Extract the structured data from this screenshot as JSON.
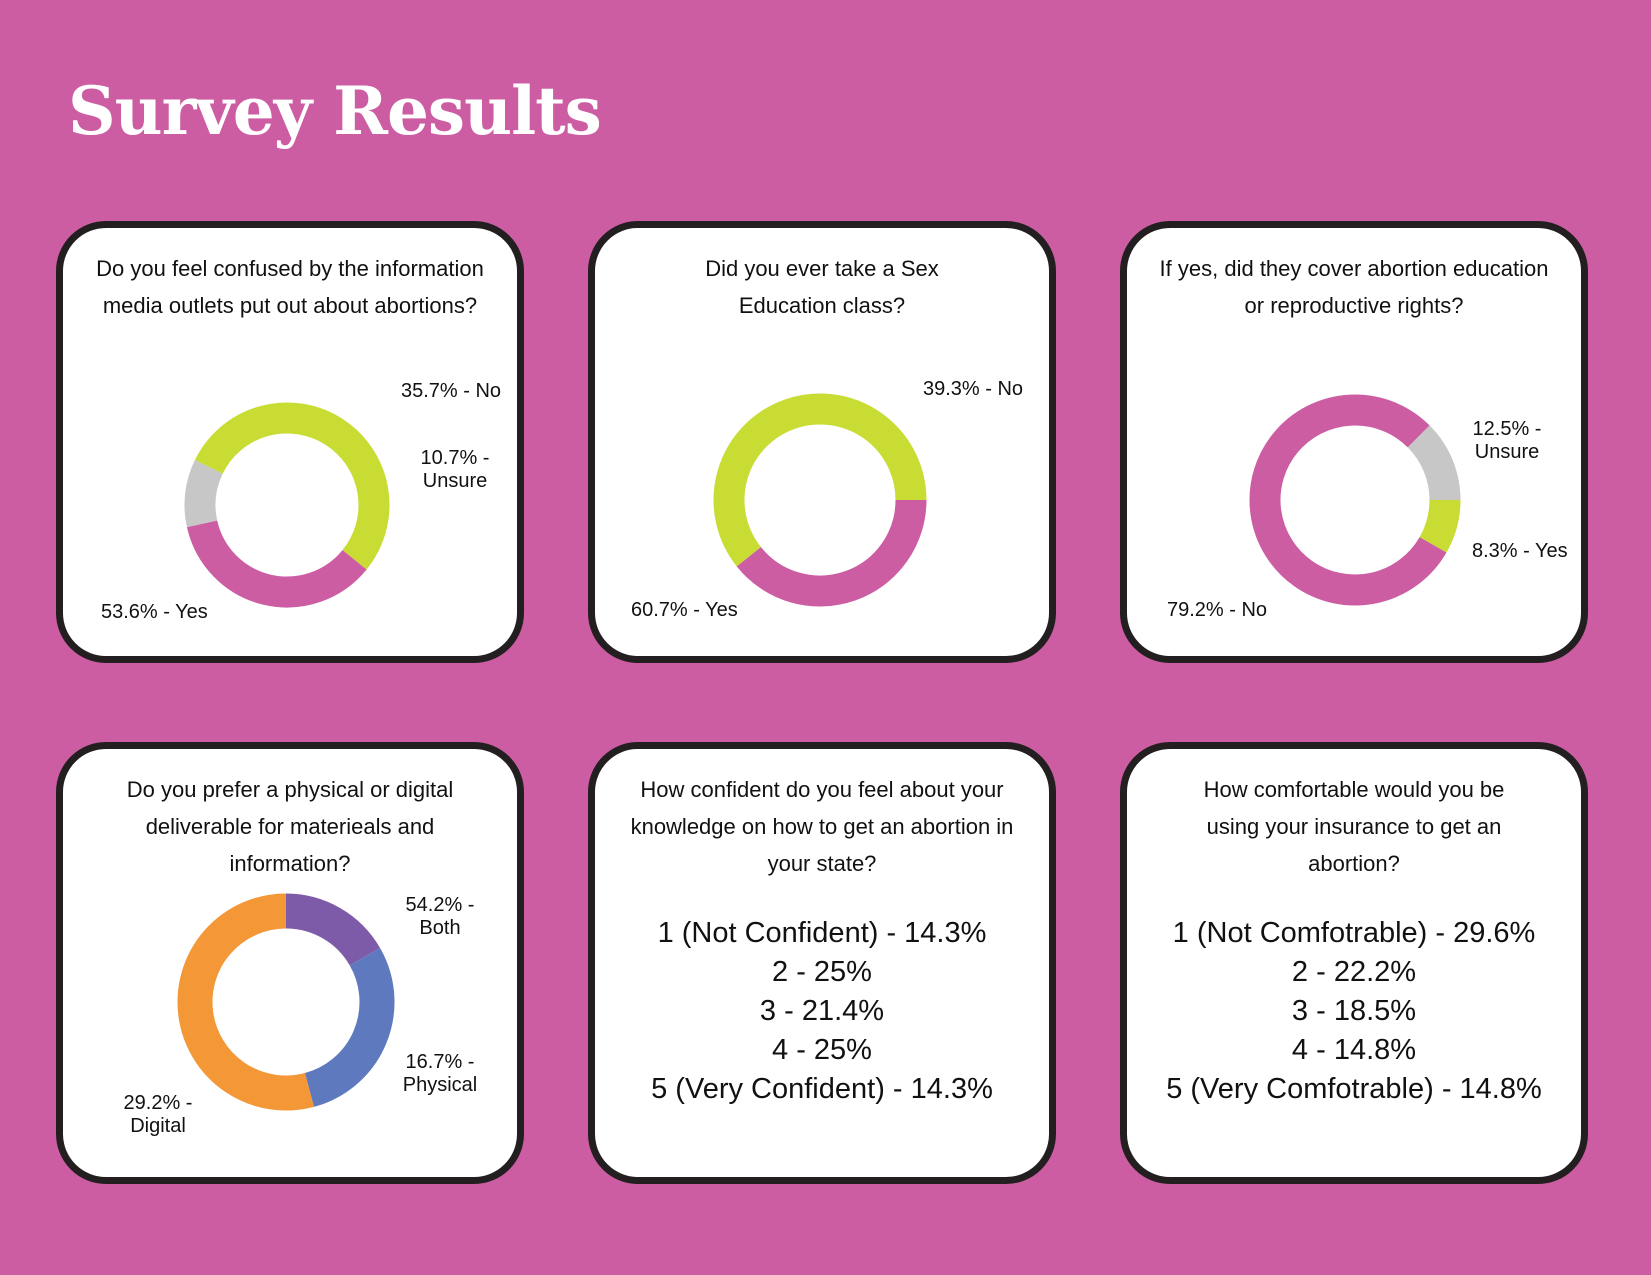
{
  "title": "Survey Results",
  "colors": {
    "background": "#cc5da2",
    "magenta": "#cc5da2",
    "lime": "#c9dc34",
    "gray": "#c7c7c7",
    "orange": "#f39737",
    "blue": "#5e79bd",
    "purple": "#7d5ba8"
  },
  "cards": [
    {
      "question": "Do you feel confused by the information media outlets put out about abortions?",
      "labels": [
        "35.7% - No",
        "10.7% - Unsure",
        "53.6% - Yes"
      ]
    },
    {
      "question": "Did you ever take a Sex Education class?",
      "labels": [
        "39.3% - No",
        "60.7% - Yes"
      ]
    },
    {
      "question": "If yes, did they cover abortion education or reproductive rights?",
      "labels": [
        "12.5% - Unsure",
        "8.3% - Yes",
        "79.2% - No"
      ]
    },
    {
      "question": "Do you prefer a physical or digital deliverable for materieals and information?",
      "labels": [
        "54.2% - Both",
        "16.7% - Physical",
        "29.2% - Digital"
      ]
    },
    {
      "question": "How confident do you feel about your knowledge on how to get an abortion in your state?",
      "items": [
        "1 (Not Confident) - 14.3%",
        "2 - 25%",
        "3 - 21.4%",
        "4 - 25%",
        "5 (Very Confident) - 14.3%"
      ]
    },
    {
      "question": "How comfortable would you be using your insurance to get an abortion?",
      "items": [
        "1 (Not Comfotrable) - 29.6%",
        "2 - 22.2%",
        "3 - 18.5%",
        "4 - 14.8%",
        "5 (Very Comfotrable) - 14.8%"
      ]
    }
  ],
  "chart_data": [
    {
      "type": "pie",
      "title": "Do you feel confused by the information media outlets put out about abortions?",
      "categories": [
        "No",
        "Unsure",
        "Yes"
      ],
      "values": [
        35.7,
        10.7,
        53.6
      ],
      "colors": [
        "#cc5da2",
        "#c7c7c7",
        "#c9dc34"
      ]
    },
    {
      "type": "pie",
      "title": "Did you ever take a Sex Education class?",
      "categories": [
        "No",
        "Yes"
      ],
      "values": [
        39.3,
        60.7
      ],
      "colors": [
        "#cc5da2",
        "#c9dc34"
      ]
    },
    {
      "type": "pie",
      "title": "If yes, did they cover abortion education or reproductive rights?",
      "categories": [
        "Unsure",
        "Yes",
        "No"
      ],
      "values": [
        12.5,
        8.3,
        79.2
      ],
      "colors": [
        "#c7c7c7",
        "#c9dc34",
        "#cc5da2"
      ]
    },
    {
      "type": "pie",
      "title": "Do you prefer a physical or digital deliverable for materieals and information?",
      "categories": [
        "Physical",
        "Digital",
        "Both"
      ],
      "values": [
        16.7,
        29.2,
        54.2
      ],
      "colors": [
        "#7d5ba8",
        "#5e79bd",
        "#f39737"
      ]
    },
    {
      "type": "table",
      "title": "How confident do you feel about your knowledge on how to get an abortion in your state?",
      "categories": [
        "1 (Not Confident)",
        "2",
        "3",
        "4",
        "5 (Very Confident)"
      ],
      "values": [
        14.3,
        25,
        21.4,
        25,
        14.3
      ]
    },
    {
      "type": "table",
      "title": "How comfortable would you be using your insurance to get an abortion?",
      "categories": [
        "1 (Not Comfotrable)",
        "2",
        "3",
        "4",
        "5 (Very Comfotrable)"
      ],
      "values": [
        29.6,
        22.2,
        18.5,
        14.8,
        14.8
      ]
    }
  ]
}
